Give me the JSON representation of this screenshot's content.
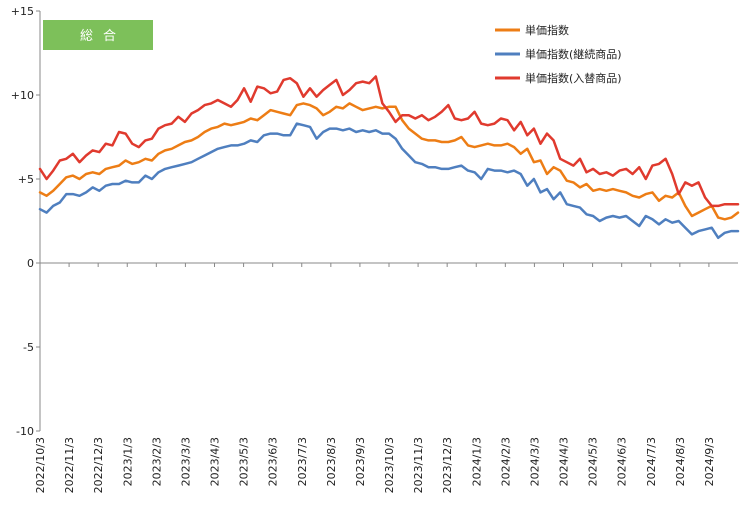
{
  "chart_data": {
    "type": "line",
    "badge": "総合",
    "ylim": [
      -10,
      15
    ],
    "y_ticks": [
      {
        "value": 15,
        "label": "+15"
      },
      {
        "value": 10,
        "label": "+10"
      },
      {
        "value": 5,
        "label": "+5"
      },
      {
        "value": 0,
        "label": "0"
      },
      {
        "value": -5,
        "label": "-5"
      },
      {
        "value": -10,
        "label": "-10"
      }
    ],
    "x_ticks": [
      "2022/10/3",
      "2022/11/3",
      "2022/12/3",
      "2023/1/3",
      "2023/2/3",
      "2023/3/3",
      "2023/4/3",
      "2023/5/3",
      "2023/6/3",
      "2023/7/3",
      "2023/8/3",
      "2023/9/3",
      "2023/10/3",
      "2023/11/3",
      "2023/12/3",
      "2024/1/3",
      "2024/2/3",
      "2024/3/3",
      "2024/4/3",
      "2024/5/3",
      "2024/6/3",
      "2024/7/3",
      "2024/8/3",
      "2024/9/3"
    ],
    "grid": false,
    "legend_position": "top-right",
    "series": [
      {
        "name": "単価指数",
        "color": "#ED7D15",
        "values": [
          4.2,
          4.0,
          4.3,
          4.7,
          5.1,
          5.2,
          5.0,
          5.3,
          5.4,
          5.3,
          5.6,
          5.7,
          5.8,
          6.1,
          5.9,
          6.0,
          6.2,
          6.1,
          6.5,
          6.7,
          6.8,
          7.0,
          7.2,
          7.3,
          7.5,
          7.8,
          8.0,
          8.1,
          8.3,
          8.2,
          8.3,
          8.4,
          8.6,
          8.5,
          8.8,
          9.1,
          9.0,
          8.9,
          8.8,
          9.4,
          9.5,
          9.4,
          9.2,
          8.8,
          9.0,
          9.3,
          9.2,
          9.5,
          9.3,
          9.1,
          9.2,
          9.3,
          9.2,
          9.3,
          9.3,
          8.5,
          8.0,
          7.7,
          7.4,
          7.3,
          7.3,
          7.2,
          7.2,
          7.3,
          7.5,
          7.0,
          6.9,
          7.0,
          7.1,
          7.0,
          7.0,
          7.1,
          6.9,
          6.5,
          6.8,
          6.0,
          6.1,
          5.3,
          5.7,
          5.5,
          4.9,
          4.8,
          4.5,
          4.7,
          4.3,
          4.4,
          4.3,
          4.4,
          4.3,
          4.2,
          4.0,
          3.9,
          4.1,
          4.2,
          3.7,
          4.0,
          3.9,
          4.2,
          3.4,
          2.8,
          3.0,
          3.2,
          3.4,
          2.7,
          2.6,
          2.7,
          3.0
        ]
      },
      {
        "name": "単価指数(継続商品)",
        "color": "#4F7FBF",
        "values": [
          3.2,
          3.0,
          3.4,
          3.6,
          4.1,
          4.1,
          4.0,
          4.2,
          4.5,
          4.3,
          4.6,
          4.7,
          4.7,
          4.9,
          4.8,
          4.8,
          5.2,
          5.0,
          5.4,
          5.6,
          5.7,
          5.8,
          5.9,
          6.0,
          6.2,
          6.4,
          6.6,
          6.8,
          6.9,
          7.0,
          7.0,
          7.1,
          7.3,
          7.2,
          7.6,
          7.7,
          7.7,
          7.6,
          7.6,
          8.3,
          8.2,
          8.1,
          7.4,
          7.8,
          8.0,
          8.0,
          7.9,
          8.0,
          7.8,
          7.9,
          7.8,
          7.9,
          7.7,
          7.7,
          7.4,
          6.8,
          6.4,
          6.0,
          5.9,
          5.7,
          5.7,
          5.6,
          5.6,
          5.7,
          5.8,
          5.5,
          5.4,
          5.0,
          5.6,
          5.5,
          5.5,
          5.4,
          5.5,
          5.3,
          4.6,
          5.0,
          4.2,
          4.4,
          3.8,
          4.2,
          3.5,
          3.4,
          3.3,
          2.9,
          2.8,
          2.5,
          2.7,
          2.8,
          2.7,
          2.8,
          2.5,
          2.2,
          2.8,
          2.6,
          2.3,
          2.6,
          2.4,
          2.5,
          2.1,
          1.7,
          1.9,
          2.0,
          2.1,
          1.5,
          1.8,
          1.9,
          1.9
        ]
      },
      {
        "name": "単価指数(入替商品)",
        "color": "#E03A2E",
        "values": [
          5.6,
          5.0,
          5.5,
          6.1,
          6.2,
          6.5,
          6.0,
          6.4,
          6.7,
          6.6,
          7.1,
          7.0,
          7.8,
          7.7,
          7.1,
          6.9,
          7.3,
          7.4,
          8.0,
          8.2,
          8.3,
          8.7,
          8.4,
          8.9,
          9.1,
          9.4,
          9.5,
          9.7,
          9.5,
          9.3,
          9.7,
          10.4,
          9.6,
          10.5,
          10.4,
          10.1,
          10.2,
          10.9,
          11.0,
          10.7,
          9.9,
          10.4,
          9.9,
          10.3,
          10.6,
          10.9,
          10.0,
          10.3,
          10.7,
          10.8,
          10.7,
          11.1,
          9.5,
          9.0,
          8.4,
          8.8,
          8.8,
          8.6,
          8.8,
          8.5,
          8.7,
          9.0,
          9.4,
          8.6,
          8.5,
          8.6,
          9.0,
          8.3,
          8.2,
          8.3,
          8.6,
          8.5,
          7.9,
          8.4,
          7.6,
          8.0,
          7.1,
          7.7,
          7.3,
          6.2,
          6.0,
          5.8,
          6.2,
          5.4,
          5.6,
          5.3,
          5.4,
          5.2,
          5.5,
          5.6,
          5.3,
          5.7,
          5.0,
          5.8,
          5.9,
          6.2,
          5.3,
          4.1,
          4.8,
          4.6,
          4.8,
          3.9,
          3.4,
          3.4,
          3.5,
          3.5,
          3.5
        ]
      }
    ]
  }
}
